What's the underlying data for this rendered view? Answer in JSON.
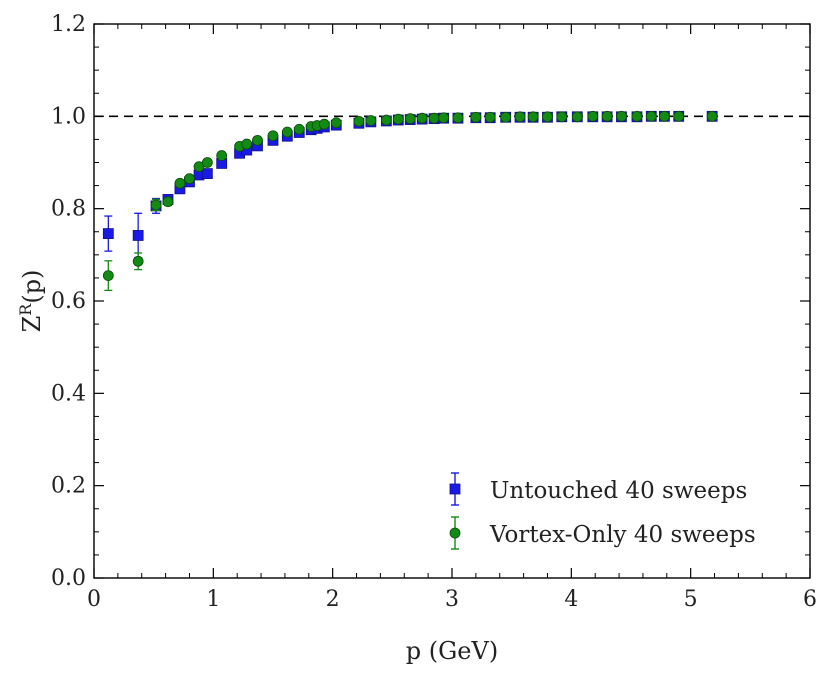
{
  "chart_data": {
    "type": "scatter",
    "xlabel": "p (GeV)",
    "ylabel_main": "Z",
    "ylabel_sup": "R",
    "ylabel_suffix": "(p)",
    "xlim": [
      0,
      6
    ],
    "ylim": [
      0.0,
      1.2
    ],
    "x_ticks": [
      0,
      1,
      2,
      3,
      4,
      5,
      6
    ],
    "x_tick_labels": [
      "0",
      "1",
      "2",
      "3",
      "4",
      "5",
      "6"
    ],
    "y_ticks": [
      0.0,
      0.2,
      0.4,
      0.6,
      0.8,
      1.0,
      1.2
    ],
    "y_tick_labels": [
      "0.0",
      "0.2",
      "0.4",
      "0.6",
      "0.8",
      "1.0",
      "1.2"
    ],
    "reference_line": 1.0,
    "legend_position": "bottom-right",
    "series": [
      {
        "name": "Untouched 40 sweeps",
        "marker": "square",
        "color": "#1a1ae6",
        "edge_color": "#10108a",
        "x": [
          0.12,
          0.37,
          0.52,
          0.62,
          0.72,
          0.8,
          0.88,
          0.95,
          1.07,
          1.22,
          1.28,
          1.37,
          1.5,
          1.62,
          1.72,
          1.82,
          1.87,
          1.93,
          2.03,
          2.22,
          2.32,
          2.45,
          2.55,
          2.65,
          2.75,
          2.85,
          2.93,
          3.05,
          3.2,
          3.32,
          3.45,
          3.57,
          3.68,
          3.8,
          3.92,
          4.05,
          4.18,
          4.3,
          4.42,
          4.55,
          4.67,
          4.78,
          4.9,
          5.18
        ],
        "y": [
          0.746,
          0.742,
          0.806,
          0.82,
          0.843,
          0.858,
          0.873,
          0.876,
          0.898,
          0.92,
          0.927,
          0.936,
          0.948,
          0.957,
          0.965,
          0.971,
          0.974,
          0.977,
          0.981,
          0.985,
          0.988,
          0.99,
          0.992,
          0.993,
          0.994,
          0.995,
          0.996,
          0.996,
          0.997,
          0.997,
          0.998,
          0.998,
          0.998,
          0.998,
          0.999,
          0.999,
          0.999,
          0.999,
          0.999,
          0.999,
          1.0,
          1.0,
          1.0,
          1.0
        ],
        "err": [
          0.038,
          0.048,
          0.016,
          0.01,
          0.008,
          0.007,
          0.006,
          0.006,
          0.005,
          0.004,
          0.004,
          0.004,
          0.003,
          0.003,
          0.003,
          0.002,
          0.002,
          0.002,
          0.002,
          0.002,
          0.002,
          0.002,
          0.002,
          0.001,
          0.001,
          0.001,
          0.001,
          0.001,
          0.001,
          0.001,
          0.001,
          0.001,
          0.001,
          0.001,
          0.001,
          0.001,
          0.001,
          0.001,
          0.001,
          0.001,
          0.001,
          0.001,
          0.001,
          0.001
        ]
      },
      {
        "name": "Vortex-Only 40 sweeps",
        "marker": "circle",
        "color": "#138a13",
        "edge_color": "#0b4a0b",
        "x": [
          0.12,
          0.37,
          0.52,
          0.62,
          0.72,
          0.8,
          0.88,
          0.95,
          1.07,
          1.22,
          1.28,
          1.37,
          1.5,
          1.62,
          1.72,
          1.82,
          1.87,
          1.93,
          2.03,
          2.22,
          2.32,
          2.45,
          2.55,
          2.65,
          2.75,
          2.85,
          2.93,
          3.05,
          3.2,
          3.32,
          3.45,
          3.57,
          3.68,
          3.8,
          3.92,
          4.05,
          4.18,
          4.3,
          4.42,
          4.55,
          4.67,
          4.78,
          4.9,
          5.18
        ],
        "y": [
          0.655,
          0.686,
          0.808,
          0.815,
          0.855,
          0.865,
          0.891,
          0.9,
          0.915,
          0.935,
          0.94,
          0.948,
          0.958,
          0.966,
          0.972,
          0.978,
          0.98,
          0.983,
          0.986,
          0.989,
          0.991,
          0.992,
          0.994,
          0.995,
          0.996,
          0.996,
          0.997,
          0.997,
          0.998,
          0.998,
          0.998,
          0.999,
          0.999,
          0.999,
          0.999,
          0.999,
          1.0,
          1.0,
          1.0,
          1.0,
          1.0,
          1.0,
          1.0,
          1.0
        ],
        "err": [
          0.032,
          0.018,
          0.012,
          0.008,
          0.007,
          0.006,
          0.005,
          0.005,
          0.004,
          0.004,
          0.004,
          0.003,
          0.003,
          0.003,
          0.002,
          0.002,
          0.002,
          0.002,
          0.002,
          0.002,
          0.002,
          0.001,
          0.001,
          0.001,
          0.001,
          0.001,
          0.001,
          0.001,
          0.001,
          0.001,
          0.001,
          0.001,
          0.001,
          0.001,
          0.001,
          0.001,
          0.001,
          0.001,
          0.001,
          0.001,
          0.001,
          0.001,
          0.001,
          0.001
        ]
      }
    ]
  }
}
